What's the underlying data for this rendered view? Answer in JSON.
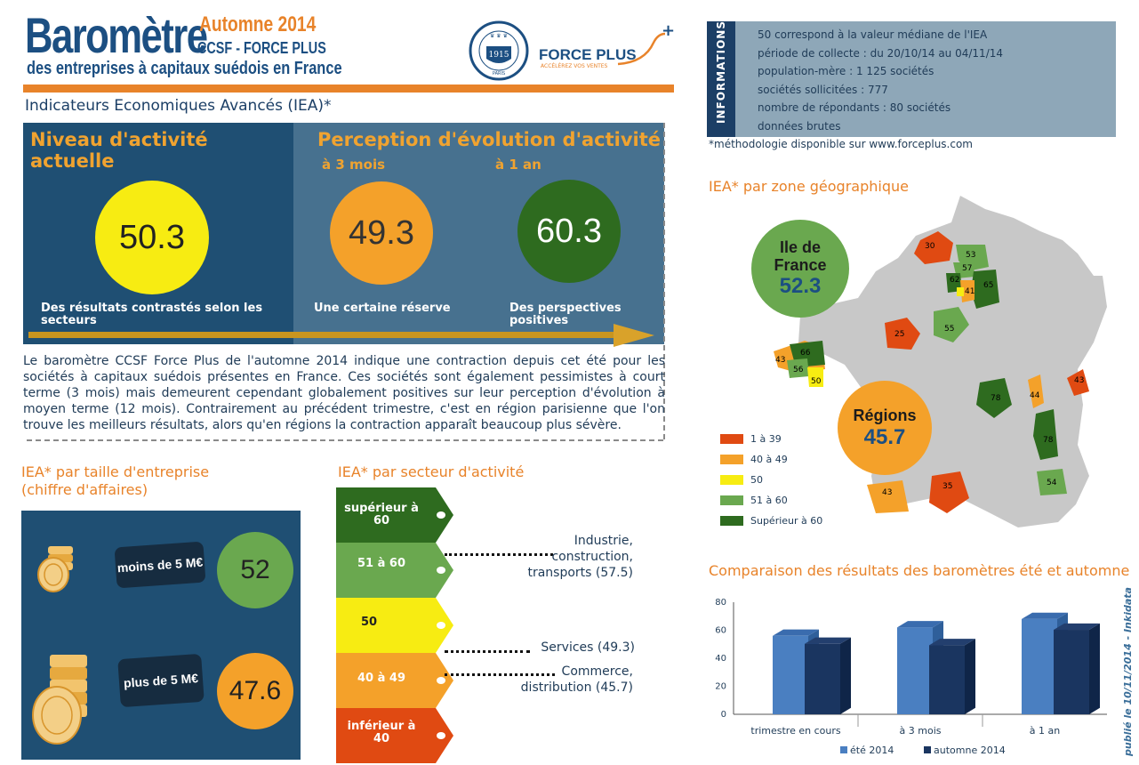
{
  "header": {
    "title": "Baromètre",
    "season": "Automne 2014",
    "subtitle": "CCSF - FORCE PLUS",
    "tagline": "des entreprises à capitaux suédois en France",
    "seal_text": "CHAMBRE DE COMMERCE SUÉDOISE EN FRANCE 1915 PARIS",
    "logo_name": "FORCE PLUS",
    "logo_tagline": "ACCÉLÉREZ VOS VENTES",
    "logo_plus": "+"
  },
  "iea_heading": "Indicateurs Economiques Avancés (IEA)*",
  "info": {
    "side_label": "INFORMATIONS",
    "lines": [
      "50 correspond à la valeur médiane de l'IEA",
      "période de collecte : du 20/10/14 au 04/11/14",
      "population-mère : 1 125 sociétés",
      "sociétés sollicitées : 777",
      "nombre de répondants : 80 sociétés",
      "données brutes"
    ],
    "note": "*méthodologie disponible sur www.forceplus.com"
  },
  "activity": {
    "current_title": "Niveau d'activité actuelle",
    "current_value": "50.3",
    "current_caption": "Des résultats contrastés selon les secteurs",
    "evolution_title": "Perception d'évolution d'activité",
    "horizon_3m": "à 3 mois",
    "horizon_1y": "à 1 an",
    "value_3m": "49.3",
    "value_1y": "60.3",
    "caption_3m": "Une certaine réserve",
    "caption_1y": "Des perspectives positives",
    "colors": {
      "yellow": "#f7ec12",
      "orange": "#f4a12a",
      "green": "#2e6b1f"
    }
  },
  "paragraph": "Le baromètre CCSF Force Plus de l'automne 2014 indique une contraction depuis cet été pour les sociétés à capitaux suédois présentes en France. Ces sociétés sont également pessimistes à court terme (3 mois) mais demeurent cependant globalement positives sur leur perception d'évolution à moyen terme (12 mois). Contrairement au précédent trimestre, c'est en région parisienne que l'on trouve les meilleurs résultats, alors qu'en régions la contraction apparaît beaucoup plus sévère.",
  "size": {
    "title_line1": "IEA* par taille d'entreprise",
    "title_line2": "(chiffre d'affaires)",
    "small_label": "moins de 5 M€",
    "small_value": "52",
    "large_label": "plus de 5 M€",
    "large_value": "47.6"
  },
  "sectors": {
    "title": "IEA* par secteur d'activité",
    "bands": [
      {
        "label": "supérieur à 60",
        "color": "#2e6b1f"
      },
      {
        "label": "51 à 60",
        "color": "#6aa84f"
      },
      {
        "label": "50",
        "color": "#f7ec12"
      },
      {
        "label": "40 à 49",
        "color": "#f4a12a"
      },
      {
        "label": "inférieur à 40",
        "color": "#e04a12"
      }
    ],
    "notes": [
      {
        "text": "Industrie, construction, transports (57.5)"
      },
      {
        "text": "Services (49.3)"
      },
      {
        "text": "Commerce, distribution (45.7)"
      }
    ]
  },
  "map": {
    "title": "IEA* par zone géographique",
    "idf_label": "Ile de France",
    "idf_value": "52.3",
    "regions_label": "Régions",
    "regions_value": "45.7",
    "region_values": [
      "30",
      "53",
      "57",
      "62",
      "41",
      "65",
      "55",
      "25",
      "66",
      "43",
      "56",
      "50",
      "78",
      "44",
      "43",
      "78",
      "54",
      "43",
      "35"
    ],
    "legend": [
      {
        "label": "1 à 39",
        "color": "#e04a12"
      },
      {
        "label": "40 à 49",
        "color": "#f4a12a"
      },
      {
        "label": "50",
        "color": "#f7ec12"
      },
      {
        "label": "51 à 60",
        "color": "#6aa84f"
      },
      {
        "label": "Supérieur à 60",
        "color": "#2e6b1f"
      }
    ]
  },
  "comparison_title": "Comparaison des résultats des baromètres été et automne",
  "stamp": "publié le 10/11/2014 - Inkidata",
  "chart_data": {
    "type": "bar",
    "title": "Comparaison des résultats des baromètres été et automne",
    "categories": [
      "trimestre en cours",
      "à 3 mois",
      "à 1 an"
    ],
    "series": [
      {
        "name": "été 2014",
        "values": [
          56,
          62,
          68
        ],
        "color": "#4a7fc1"
      },
      {
        "name": "automne 2014",
        "values": [
          50.3,
          49.3,
          60.3
        ],
        "color": "#1a3560"
      }
    ],
    "ylim": [
      0,
      80
    ],
    "yticks": [
      "0",
      "20",
      "40",
      "60",
      "80"
    ],
    "xlabel": "",
    "ylabel": "",
    "legend": "bottom",
    "grid": false
  }
}
